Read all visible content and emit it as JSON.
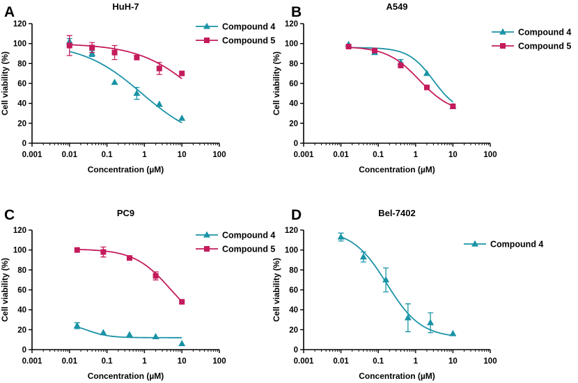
{
  "colors": {
    "compound4": "#1a93a6",
    "compound5": "#c41b5c",
    "axis": "#000000"
  },
  "chart_data": [
    {
      "panel_label": "A",
      "type": "scatter",
      "title": "HuH-7",
      "xlabel": "Concentration (µM)",
      "ylabel": "Cell viability (%)",
      "xscale": "log",
      "xlim": [
        0.001,
        100
      ],
      "ylim": [
        0,
        120
      ],
      "xticks": [
        "0.001",
        "0.01",
        "0.1",
        "1",
        "10",
        "100"
      ],
      "yticks": [
        "0",
        "20",
        "40",
        "60",
        "80",
        "100",
        "120"
      ],
      "legend_position": "top-right",
      "series": [
        {
          "name": "Compound 4",
          "marker": "triangle",
          "color_key": "compound4",
          "x": [
            0.01,
            0.04,
            0.16,
            0.625,
            2.5,
            10
          ],
          "values": [
            102,
            90,
            61,
            50,
            39,
            25
          ],
          "err": [
            3,
            3,
            0,
            6,
            0,
            0
          ],
          "ic50": 0.85,
          "hill": 0.55,
          "top": 100,
          "bottom": 0
        },
        {
          "name": "Compound 5",
          "marker": "square",
          "color_key": "compound5",
          "x": [
            0.01,
            0.04,
            0.16,
            0.625,
            2.5,
            10
          ],
          "values": [
            98,
            96,
            91,
            86,
            75,
            70
          ],
          "err": [
            10,
            5,
            7,
            0,
            6,
            0
          ],
          "ic50": 30,
          "hill": 0.55,
          "top": 100,
          "bottom": 0
        }
      ]
    },
    {
      "panel_label": "B",
      "type": "scatter",
      "title": "A549",
      "xlabel": "Concentration (µM)",
      "ylabel": "Cell viability (%)",
      "xscale": "log",
      "xlim": [
        0.001,
        100
      ],
      "ylim": [
        0,
        120
      ],
      "xticks": [
        "0.001",
        "0.01",
        "0.1",
        "1",
        "10",
        "100"
      ],
      "yticks": [
        "0",
        "20",
        "40",
        "60",
        "80",
        "100",
        "120"
      ],
      "legend_position": "top-right",
      "series": [
        {
          "name": "Compound 4",
          "marker": "triangle",
          "color_key": "compound4",
          "x": [
            0.016,
            0.08,
            0.4,
            2,
            10
          ],
          "values": [
            99,
            91,
            81,
            70,
            37
          ],
          "err": [
            0,
            2,
            3,
            0,
            0
          ],
          "ic50": 3,
          "hill": 1.3,
          "top": 96,
          "bottom": 30
        },
        {
          "name": "Compound 5",
          "marker": "square",
          "color_key": "compound5",
          "x": [
            0.016,
            0.08,
            0.4,
            2,
            10
          ],
          "values": [
            97,
            93,
            78,
            56,
            37
          ],
          "err": [
            0,
            0,
            2,
            0,
            0
          ],
          "ic50": 1.25,
          "hill": 1.0,
          "top": 97,
          "bottom": 30
        }
      ]
    },
    {
      "panel_label": "C",
      "type": "scatter",
      "title": "PC9",
      "xlabel": "Concentration (µM)",
      "ylabel": "Cell viability (%)",
      "xscale": "log",
      "xlim": [
        0.001,
        100
      ],
      "ylim": [
        0,
        120
      ],
      "xticks": [
        "0.001",
        "0.01",
        "0.1",
        "1",
        "10",
        "100"
      ],
      "yticks": [
        "0",
        "20",
        "40",
        "60",
        "80",
        "100",
        "120"
      ],
      "legend_position": "top-right",
      "series": [
        {
          "name": "Compound 4",
          "marker": "triangle",
          "color_key": "compound4",
          "x": [
            0.016,
            0.08,
            0.4,
            2,
            10
          ],
          "values": [
            24,
            17,
            15,
            13,
            6
          ],
          "err": [
            3,
            0,
            0,
            0,
            0
          ],
          "ic50": 0.03,
          "hill": 1.5,
          "top": 27,
          "bottom": 12
        },
        {
          "name": "Compound 5",
          "marker": "square",
          "color_key": "compound5",
          "x": [
            0.016,
            0.08,
            0.4,
            2,
            10
          ],
          "values": [
            100,
            98,
            92,
            74,
            48
          ],
          "err": [
            0,
            5,
            0,
            4,
            0
          ],
          "ic50": 5,
          "hill": 0.9,
          "top": 101,
          "bottom": 20
        }
      ]
    },
    {
      "panel_label": "D",
      "type": "scatter",
      "title": "Bel-7402",
      "xlabel": "Concentration (µM)",
      "ylabel": "Cell viability (%)",
      "xscale": "log",
      "xlim": [
        0.001,
        100
      ],
      "ylim": [
        0,
        120
      ],
      "xticks": [
        "0.001",
        "0.01",
        "0.1",
        "1",
        "10",
        "100"
      ],
      "yticks": [
        "0",
        "20",
        "40",
        "60",
        "80",
        "100",
        "120"
      ],
      "legend_position": "top-right",
      "series": [
        {
          "name": "Compound 4",
          "marker": "triangle",
          "color_key": "compound4",
          "x": [
            0.01,
            0.04,
            0.16,
            0.625,
            2.5,
            10
          ],
          "values": [
            113,
            93,
            70,
            32,
            27,
            16
          ],
          "err": [
            4,
            5,
            12,
            14,
            10,
            0
          ],
          "ic50": 0.17,
          "hill": 0.95,
          "top": 120,
          "bottom": 12
        }
      ]
    }
  ]
}
